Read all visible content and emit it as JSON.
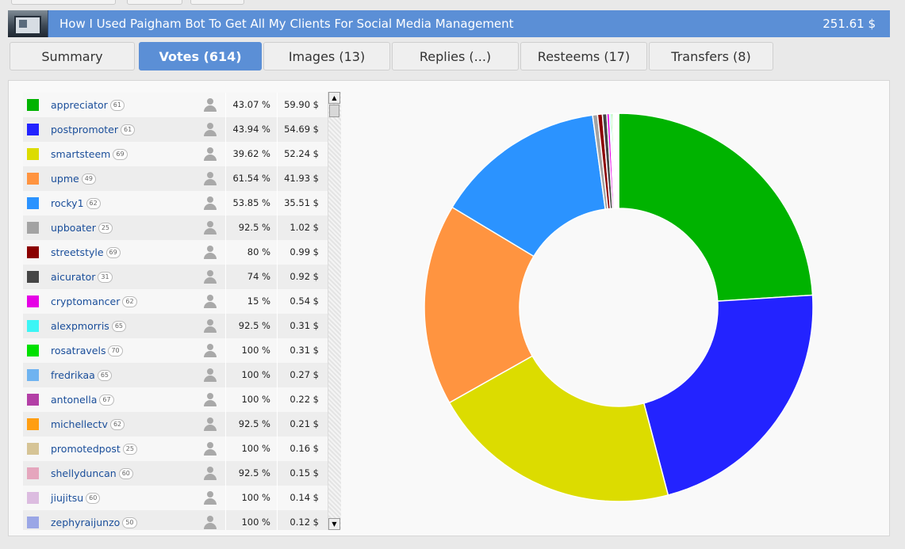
{
  "post": {
    "title": "How I Used Paigham Bot To Get All My Clients For Social Media Management",
    "total": "251.61 $"
  },
  "tabs": [
    "Summary",
    "Votes (614)",
    "Images (13)",
    "Replies (...)",
    "Resteems (17)",
    "Transfers (8)"
  ],
  "active_tab": 1,
  "voters": [
    {
      "name": "appreciator",
      "rep": "61",
      "pct": "43.07 %",
      "value": "59.90 $",
      "color": "#00b300"
    },
    {
      "name": "postpromoter",
      "rep": "61",
      "pct": "43.94 %",
      "value": "54.69 $",
      "color": "#2323ff"
    },
    {
      "name": "smartsteem",
      "rep": "69",
      "pct": "39.62 %",
      "value": "52.24 $",
      "color": "#dcdc00"
    },
    {
      "name": "upme",
      "rep": "49",
      "pct": "61.54 %",
      "value": "41.93 $",
      "color": "#ff9440"
    },
    {
      "name": "rocky1",
      "rep": "62",
      "pct": "53.85 %",
      "value": "35.51 $",
      "color": "#2b93ff"
    },
    {
      "name": "upboater",
      "rep": "25",
      "pct": "92.5 %",
      "value": "1.02 $",
      "color": "#a3a3a3"
    },
    {
      "name": "streetstyle",
      "rep": "69",
      "pct": "80 %",
      "value": "0.99 $",
      "color": "#8b0000"
    },
    {
      "name": "aicurator",
      "rep": "31",
      "pct": "74 %",
      "value": "0.92 $",
      "color": "#454545"
    },
    {
      "name": "cryptomancer",
      "rep": "62",
      "pct": "15 %",
      "value": "0.54 $",
      "color": "#e600e6"
    },
    {
      "name": "alexpmorris",
      "rep": "65",
      "pct": "92.5 %",
      "value": "0.31 $",
      "color": "#3cf5f5"
    },
    {
      "name": "rosatravels",
      "rep": "70",
      "pct": "100 %",
      "value": "0.31 $",
      "color": "#00e000"
    },
    {
      "name": "fredrikaa",
      "rep": "65",
      "pct": "100 %",
      "value": "0.27 $",
      "color": "#6fb3f0"
    },
    {
      "name": "antonella",
      "rep": "67",
      "pct": "100 %",
      "value": "0.22 $",
      "color": "#b33fa6"
    },
    {
      "name": "michellectv",
      "rep": "62",
      "pct": "92.5 %",
      "value": "0.21 $",
      "color": "#ff9e12"
    },
    {
      "name": "promotedpost",
      "rep": "25",
      "pct": "100 %",
      "value": "0.16 $",
      "color": "#d6c496"
    },
    {
      "name": "shellyduncan",
      "rep": "60",
      "pct": "92.5 %",
      "value": "0.15 $",
      "color": "#e5a6bd"
    },
    {
      "name": "jiujitsu",
      "rep": "60",
      "pct": "100 %",
      "value": "0.14 $",
      "color": "#dcbce0"
    },
    {
      "name": "zephyraijunzo",
      "rep": "50",
      "pct": "100 %",
      "value": "0.12 $",
      "color": "#9aa6e6"
    }
  ],
  "chart_data": {
    "type": "pie",
    "donut": true,
    "slices": [
      {
        "label": "appreciator",
        "value": 59.9,
        "color": "#00b300"
      },
      {
        "label": "postpromoter",
        "value": 54.69,
        "color": "#2323ff"
      },
      {
        "label": "smartsteem",
        "value": 52.24,
        "color": "#dcdc00"
      },
      {
        "label": "upme",
        "value": 41.93,
        "color": "#ff9440"
      },
      {
        "label": "rocky1",
        "value": 35.51,
        "color": "#2b93ff"
      },
      {
        "label": "upboater",
        "value": 1.02,
        "color": "#a3a3a3"
      },
      {
        "label": "streetstyle",
        "value": 0.99,
        "color": "#8b0000"
      },
      {
        "label": "aicurator",
        "value": 0.92,
        "color": "#454545"
      },
      {
        "label": "cryptomancer",
        "value": 0.54,
        "color": "#e600e6"
      },
      {
        "label": "alexpmorris",
        "value": 0.31,
        "color": "#3cf5f5"
      },
      {
        "label": "rosatravels",
        "value": 0.31,
        "color": "#00e000"
      },
      {
        "label": "fredrikaa",
        "value": 0.27,
        "color": "#6fb3f0"
      },
      {
        "label": "antonella",
        "value": 0.22,
        "color": "#b33fa6"
      },
      {
        "label": "michellectv",
        "value": 0.21,
        "color": "#ff9e12"
      },
      {
        "label": "promotedpost",
        "value": 0.16,
        "color": "#d6c496"
      },
      {
        "label": "shellyduncan",
        "value": 0.15,
        "color": "#e5a6bd"
      },
      {
        "label": "jiujitsu",
        "value": 0.14,
        "color": "#dcbce0"
      },
      {
        "label": "zephyraijunzo",
        "value": 0.12,
        "color": "#9aa6e6"
      }
    ]
  }
}
